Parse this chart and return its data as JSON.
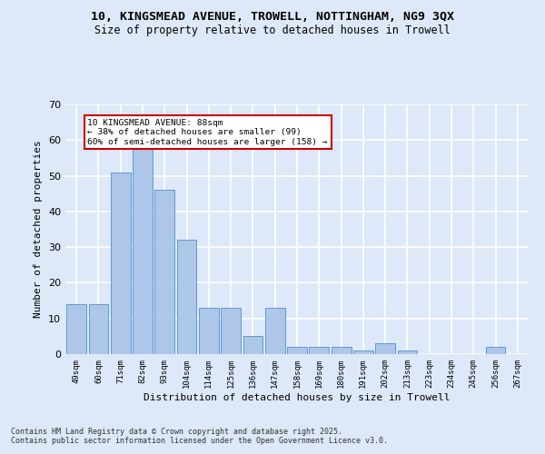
{
  "title_line1": "10, KINGSMEAD AVENUE, TROWELL, NOTTINGHAM, NG9 3QX",
  "title_line2": "Size of property relative to detached houses in Trowell",
  "xlabel": "Distribution of detached houses by size in Trowell",
  "ylabel": "Number of detached properties",
  "categories": [
    "49sqm",
    "60sqm",
    "71sqm",
    "82sqm",
    "93sqm",
    "104sqm",
    "114sqm",
    "125sqm",
    "136sqm",
    "147sqm",
    "158sqm",
    "169sqm",
    "180sqm",
    "191sqm",
    "202sqm",
    "213sqm",
    "223sqm",
    "234sqm",
    "245sqm",
    "256sqm",
    "267sqm"
  ],
  "values": [
    14,
    14,
    51,
    58,
    46,
    32,
    13,
    13,
    5,
    13,
    2,
    2,
    2,
    1,
    3,
    1,
    0,
    0,
    0,
    2,
    0
  ],
  "bar_color": "#aec6e8",
  "bar_edge_color": "#5b9bd5",
  "background_color": "#dde8f8",
  "grid_color": "#ffffff",
  "annotation_box_text": "10 KINGSMEAD AVENUE: 88sqm\n← 38% of detached houses are smaller (99)\n60% of semi-detached houses are larger (158) →",
  "annotation_box_color": "#ffffff",
  "annotation_box_edge_color": "#cc0000",
  "footer_text": "Contains HM Land Registry data © Crown copyright and database right 2025.\nContains public sector information licensed under the Open Government Licence v3.0.",
  "ylim": [
    0,
    70
  ],
  "yticks": [
    0,
    10,
    20,
    30,
    40,
    50,
    60,
    70
  ]
}
